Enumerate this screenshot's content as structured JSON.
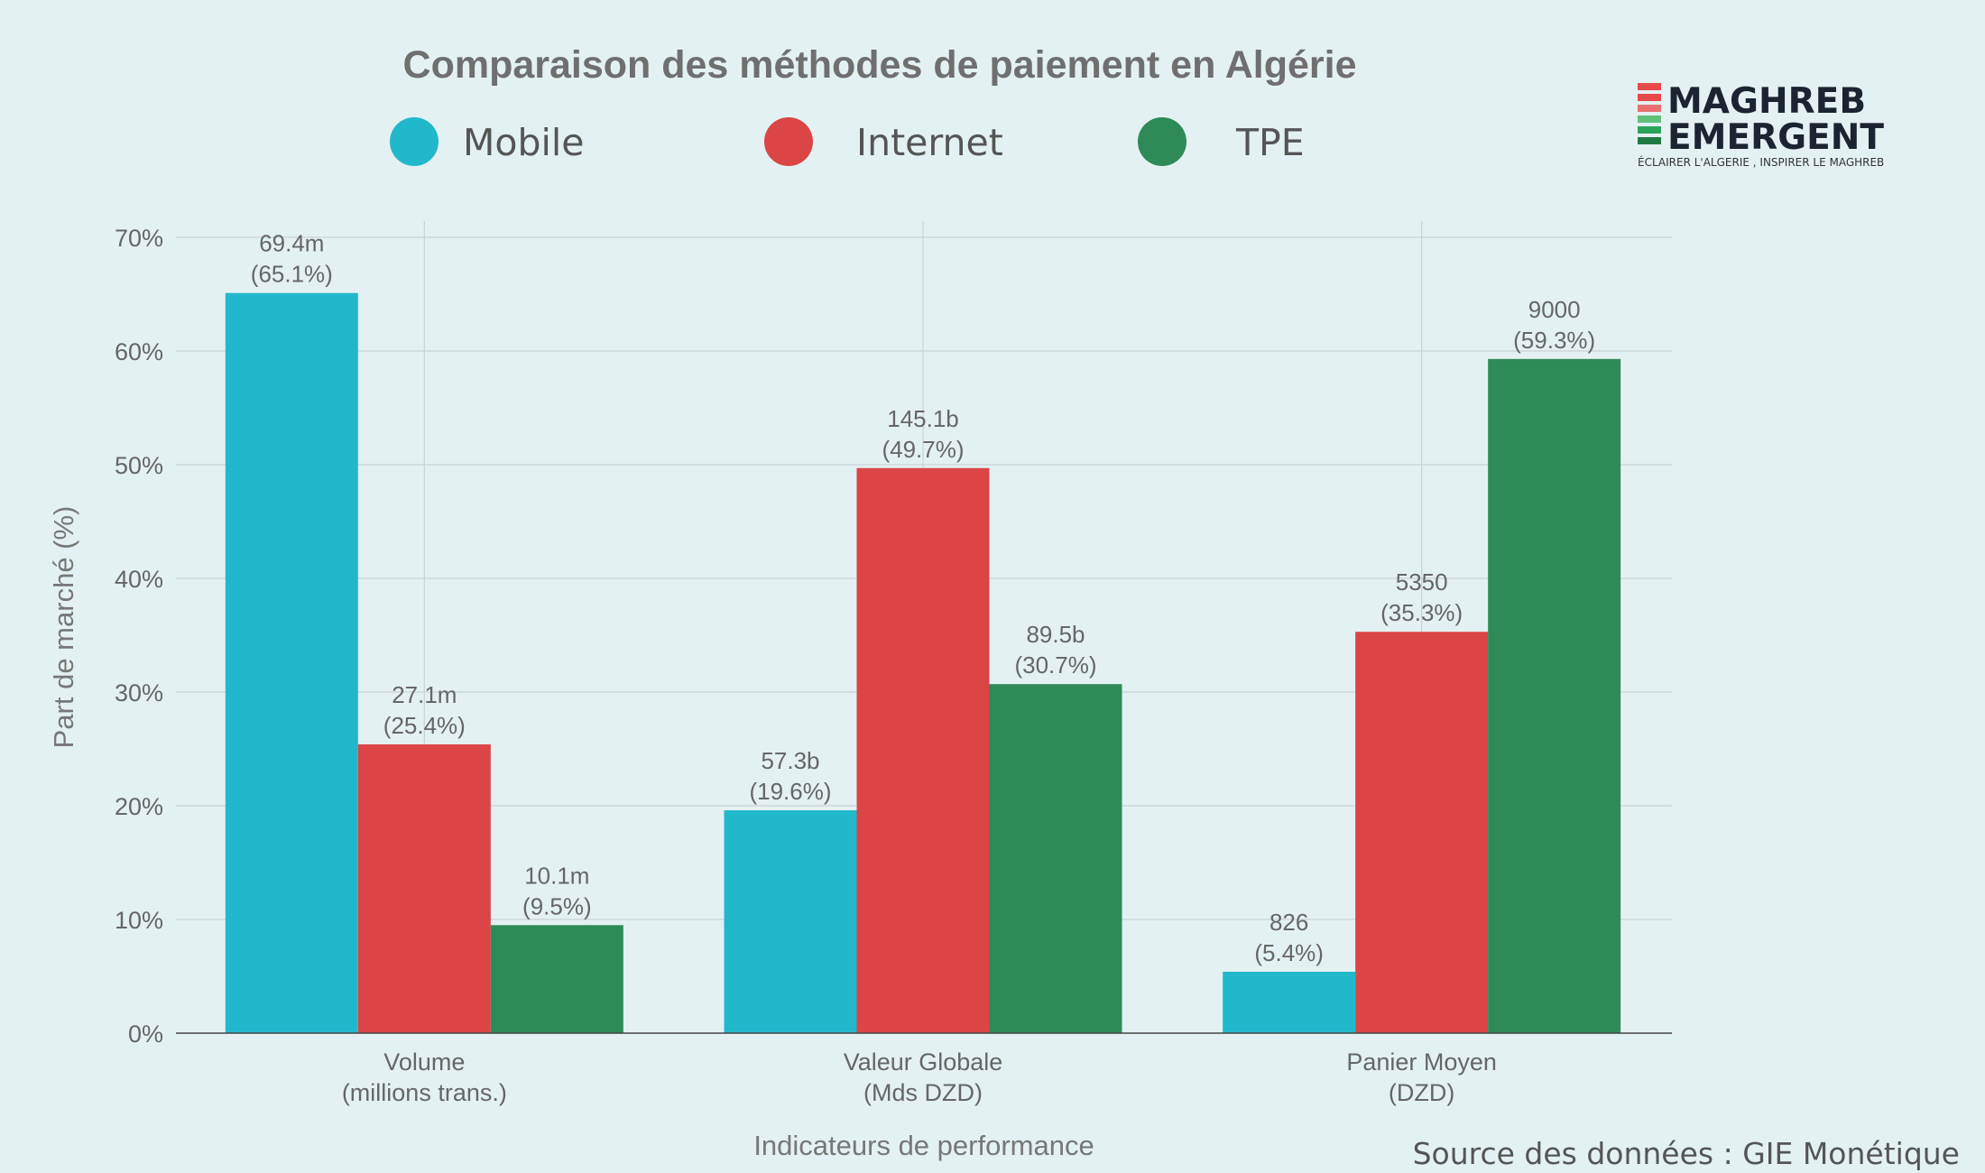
{
  "chart_data": {
    "type": "bar",
    "title": "Comparaison des méthodes de paiement en Algérie",
    "xlabel": "Indicateurs de performance",
    "ylabel": "Part de marché (%)",
    "ylim": [
      0,
      75
    ],
    "yticks": [
      0,
      10,
      20,
      30,
      40,
      50,
      60,
      70
    ],
    "ytick_suffix": "%",
    "grid": true,
    "legend_position": "top",
    "categories": [
      [
        "Volume",
        "(millions trans.)"
      ],
      [
        "Valeur Globale",
        "(Mds DZD)"
      ],
      [
        "Panier Moyen",
        "(DZD)"
      ]
    ],
    "series": [
      {
        "name": "Mobile",
        "color": "#22b8cc",
        "values": [
          65.1,
          19.6,
          5.4
        ],
        "labels": [
          [
            "69.4m",
            "(65.1%)"
          ],
          [
            "57.3b",
            "(19.6%)"
          ],
          [
            "826",
            "(5.4%)"
          ]
        ]
      },
      {
        "name": "Internet",
        "color": "#db4545",
        "values": [
          25.4,
          49.7,
          35.3
        ],
        "labels": [
          [
            "27.1m",
            "(25.4%)"
          ],
          [
            "145.1b",
            "(49.7%)"
          ],
          [
            "5350",
            "(35.3%)"
          ]
        ]
      },
      {
        "name": "TPE",
        "color": "#2e8b57",
        "values": [
          9.5,
          30.7,
          59.3
        ],
        "labels": [
          [
            "10.1m",
            "(9.5%)"
          ],
          [
            "89.5b",
            "(30.7%)"
          ],
          [
            "9000",
            "(59.3%)"
          ]
        ]
      }
    ]
  },
  "logo": {
    "line1": "MAGHREB",
    "line2": "EMERGENT",
    "tagline": "ÉCLAIRER L'ALGERIE , INSPIRER LE MAGHREB",
    "stripe_colors": [
      "#e84a4a",
      "#e84a4a",
      "#e87070",
      "#5fc07a",
      "#2aa35a",
      "#1f7a43"
    ]
  },
  "source": "Source des données : GIE Monétique"
}
